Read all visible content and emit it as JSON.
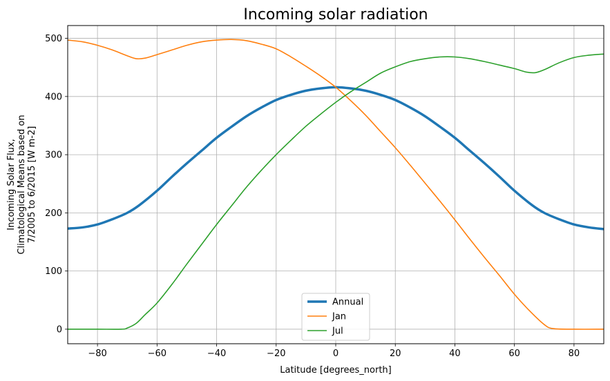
{
  "chart_data": {
    "type": "line",
    "title": "Incoming solar radiation",
    "xlabel": "Latitude [degrees_north]",
    "ylabel_lines": [
      "Incoming Solar Flux,",
      "Climatological Means based on",
      "7/2005 to 6/2015 [W m-2]"
    ],
    "xlim": [
      -90,
      90
    ],
    "ylim": [
      -25,
      522
    ],
    "xticks": [
      -80,
      -60,
      -40,
      -20,
      0,
      20,
      40,
      60,
      80
    ],
    "xtick_labels": [
      "−80",
      "−60",
      "−40",
      "−20",
      "0",
      "20",
      "40",
      "60",
      "80"
    ],
    "yticks": [
      0,
      100,
      200,
      300,
      400,
      500
    ],
    "ytick_labels": [
      "0",
      "100",
      "200",
      "300",
      "400",
      "500"
    ],
    "grid": true,
    "legend_position": "bottom-center",
    "series": [
      {
        "name": "Annual",
        "color": "#1f77b4",
        "width": 3.5,
        "points": [
          [
            -90,
            173
          ],
          [
            -85,
            175
          ],
          [
            -80,
            180
          ],
          [
            -75,
            189
          ],
          [
            -70,
            200
          ],
          [
            -66,
            213
          ],
          [
            -60,
            238
          ],
          [
            -55,
            262
          ],
          [
            -50,
            285
          ],
          [
            -45,
            307
          ],
          [
            -40,
            329
          ],
          [
            -35,
            348
          ],
          [
            -30,
            366
          ],
          [
            -25,
            381
          ],
          [
            -20,
            394
          ],
          [
            -15,
            403
          ],
          [
            -10,
            410
          ],
          [
            -5,
            414
          ],
          [
            0,
            416
          ],
          [
            5,
            414
          ],
          [
            10,
            410
          ],
          [
            15,
            403
          ],
          [
            20,
            394
          ],
          [
            25,
            381
          ],
          [
            30,
            366
          ],
          [
            35,
            348
          ],
          [
            40,
            329
          ],
          [
            45,
            307
          ],
          [
            50,
            285
          ],
          [
            55,
            262
          ],
          [
            60,
            238
          ],
          [
            66,
            213
          ],
          [
            70,
            200
          ],
          [
            75,
            189
          ],
          [
            80,
            180
          ],
          [
            85,
            175
          ],
          [
            90,
            172
          ]
        ]
      },
      {
        "name": "Jan",
        "color": "#ff7f0e",
        "width": 1.6,
        "points": [
          [
            -90,
            497
          ],
          [
            -85,
            494
          ],
          [
            -80,
            488
          ],
          [
            -75,
            480
          ],
          [
            -70,
            470
          ],
          [
            -67,
            465
          ],
          [
            -64,
            466
          ],
          [
            -60,
            472
          ],
          [
            -55,
            480
          ],
          [
            -50,
            488
          ],
          [
            -45,
            494
          ],
          [
            -40,
            497
          ],
          [
            -35,
            498
          ],
          [
            -30,
            496
          ],
          [
            -25,
            490
          ],
          [
            -20,
            482
          ],
          [
            -15,
            468
          ],
          [
            -10,
            452
          ],
          [
            -5,
            435
          ],
          [
            0,
            416
          ],
          [
            5,
            393
          ],
          [
            10,
            368
          ],
          [
            15,
            340
          ],
          [
            20,
            312
          ],
          [
            25,
            282
          ],
          [
            30,
            251
          ],
          [
            35,
            220
          ],
          [
            40,
            188
          ],
          [
            45,
            155
          ],
          [
            50,
            123
          ],
          [
            55,
            92
          ],
          [
            60,
            60
          ],
          [
            65,
            32
          ],
          [
            70,
            8
          ],
          [
            73,
            1
          ],
          [
            80,
            0
          ],
          [
            90,
            0
          ]
        ]
      },
      {
        "name": "Jul",
        "color": "#2ca02c",
        "width": 1.6,
        "points": [
          [
            -90,
            0
          ],
          [
            -80,
            0
          ],
          [
            -72,
            0
          ],
          [
            -70,
            2
          ],
          [
            -67,
            10
          ],
          [
            -64,
            25
          ],
          [
            -60,
            45
          ],
          [
            -55,
            77
          ],
          [
            -50,
            112
          ],
          [
            -45,
            146
          ],
          [
            -40,
            180
          ],
          [
            -35,
            212
          ],
          [
            -30,
            244
          ],
          [
            -25,
            273
          ],
          [
            -20,
            300
          ],
          [
            -15,
            325
          ],
          [
            -10,
            349
          ],
          [
            -5,
            370
          ],
          [
            0,
            390
          ],
          [
            5,
            408
          ],
          [
            10,
            424
          ],
          [
            15,
            440
          ],
          [
            20,
            451
          ],
          [
            25,
            460
          ],
          [
            30,
            465
          ],
          [
            35,
            468
          ],
          [
            40,
            468
          ],
          [
            45,
            465
          ],
          [
            50,
            460
          ],
          [
            55,
            454
          ],
          [
            60,
            448
          ],
          [
            64,
            442
          ],
          [
            67,
            441
          ],
          [
            70,
            446
          ],
          [
            75,
            458
          ],
          [
            80,
            467
          ],
          [
            85,
            471
          ],
          [
            90,
            473
          ]
        ]
      }
    ]
  }
}
